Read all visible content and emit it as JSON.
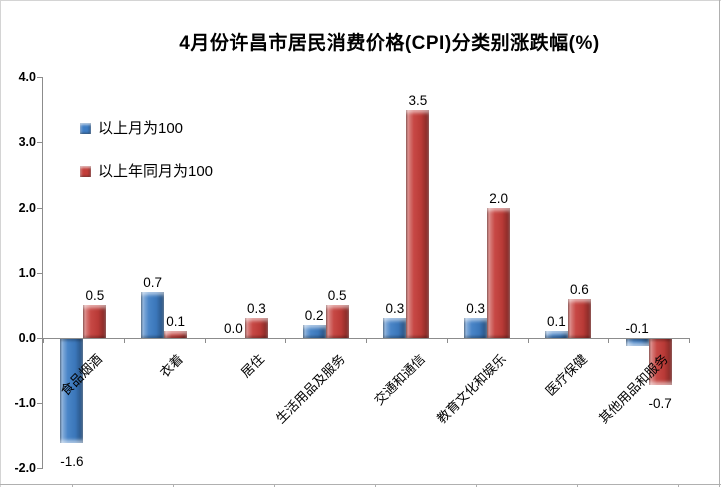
{
  "title": "4月份许昌市居民消费价格(CPI)分类别涨跌幅(%)",
  "legend": {
    "items": [
      {
        "label": "以上月为100",
        "color": "#3e7dc4"
      },
      {
        "label": "以上年同月为100",
        "color": "#c33d39"
      }
    ],
    "position": "upper-left-inside"
  },
  "chart_data": {
    "type": "bar",
    "title": "4月份许昌市居民消费价格(CPI)分类别涨跌幅(%)",
    "categories": [
      "食品烟酒",
      "衣着",
      "居住",
      "生活用品及服务",
      "交通和通信",
      "教育文化和娱乐",
      "医疗保健",
      "其他用品和服务"
    ],
    "series": [
      {
        "name": "以上月为100",
        "color": "#3e7dc4",
        "values": [
          -1.6,
          0.7,
          0.0,
          0.2,
          0.3,
          0.3,
          0.1,
          -0.1
        ]
      },
      {
        "name": "以上年同月为100",
        "color": "#c33d39",
        "values": [
          0.5,
          0.1,
          0.3,
          0.5,
          3.5,
          2.0,
          0.6,
          -0.7
        ]
      }
    ],
    "xlabel": "",
    "ylabel": "",
    "ylim": [
      -2.0,
      4.0
    ],
    "ytick_interval": 1.0,
    "ytick_labels": [
      "4.0",
      "3.0",
      "2.0",
      "1.0",
      "0.0",
      "-1.0",
      "-2.0"
    ],
    "grid": false,
    "data_labels": true,
    "category_label_rotation_deg": 45,
    "legend_position": "upper-left-inside"
  }
}
